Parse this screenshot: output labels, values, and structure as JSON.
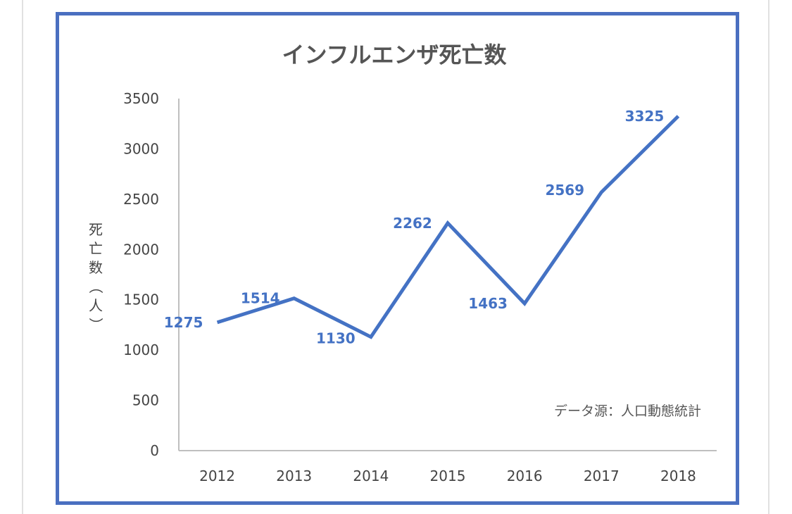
{
  "chart_data": {
    "type": "line",
    "title": "インフルエンザ死亡数",
    "xlabel": "",
    "ylabel": "死亡数（人）",
    "categories": [
      "2012",
      "2013",
      "2014",
      "2015",
      "2016",
      "2017",
      "2018"
    ],
    "series": [
      {
        "values": [
          1275,
          1514,
          1130,
          2262,
          1463,
          2569,
          3325
        ]
      }
    ],
    "data_labels": [
      "1275",
      "1514",
      "1130",
      "2262",
      "1463",
      "2569",
      "3325"
    ],
    "ylim": [
      0,
      3500
    ],
    "yticks": [
      "0",
      "500",
      "1000",
      "1500",
      "2000",
      "2500",
      "3000",
      "3500"
    ],
    "grid": false,
    "legend": "none",
    "annotation": "データ源：人口動態統計",
    "line_color": "#4472c4",
    "frame_color": "#4a6fc0"
  }
}
